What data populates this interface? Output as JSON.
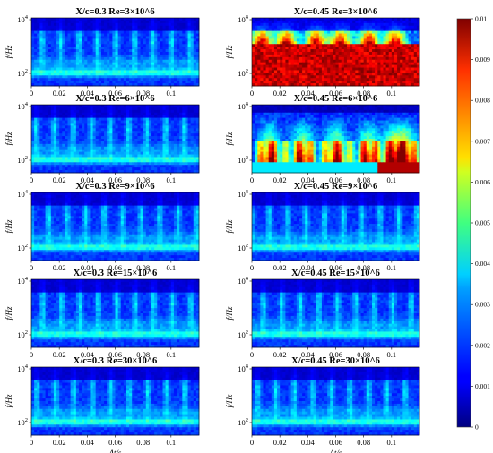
{
  "chart_data": {
    "type": "heatmap",
    "colorbar": {
      "colormap": "jet",
      "range": [
        0,
        0.01
      ],
      "ticks": [
        "0",
        "0.001",
        "0.002",
        "0.003",
        "0.004",
        "0.005",
        "0.006",
        "0.007",
        "0.008",
        "0.009",
        "0.01"
      ]
    },
    "xlabel": "Δt/s",
    "ylabel": "f/Hz",
    "x_ticks": [
      "0",
      "0.02",
      "0.04",
      "0.06",
      "0.08",
      "0.1"
    ],
    "y_ticks": [
      "10^2",
      "10^4"
    ],
    "xlim": [
      0,
      0.12
    ],
    "y_scale": "log",
    "panels": [
      {
        "row": 0,
        "col": 0,
        "title": "X/c=0.3 Re=3×10^6",
        "intensity": "low"
      },
      {
        "row": 0,
        "col": 1,
        "title": "X/c=0.45 Re=3×10^6",
        "intensity": "saturated"
      },
      {
        "row": 1,
        "col": 0,
        "title": "X/c=0.3 Re=6×10^6",
        "intensity": "low"
      },
      {
        "row": 1,
        "col": 1,
        "title": "X/c=0.45 Re=6×10^6",
        "intensity": "high"
      },
      {
        "row": 2,
        "col": 0,
        "title": "X/c=0.3 Re=9×10^6",
        "intensity": "low"
      },
      {
        "row": 2,
        "col": 1,
        "title": "X/c=0.45 Re=9×10^6",
        "intensity": "low"
      },
      {
        "row": 3,
        "col": 0,
        "title": "X/c=0.3 Re=15×10^6",
        "intensity": "low"
      },
      {
        "row": 3,
        "col": 1,
        "title": "X/c=0.45 Re=15×10^6",
        "intensity": "low"
      },
      {
        "row": 4,
        "col": 0,
        "title": "X/c=0.3 Re=30×10^6",
        "intensity": "low"
      },
      {
        "row": 4,
        "col": 1,
        "title": "X/c=0.45 Re=30×10^6",
        "intensity": "low"
      }
    ]
  }
}
